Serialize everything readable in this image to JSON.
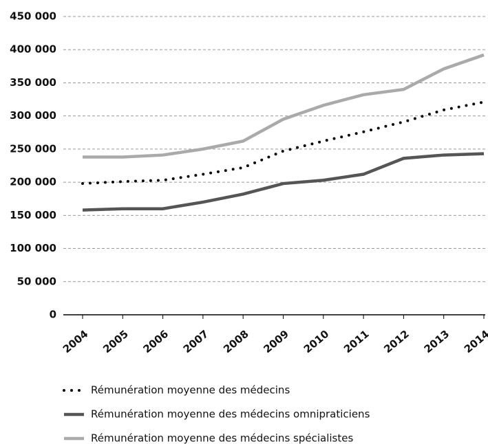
{
  "chart_data": {
    "type": "line",
    "categories": [
      "2004",
      "2005",
      "2006",
      "2007",
      "2008",
      "2009",
      "2010",
      "2011",
      "2012",
      "2013",
      "2014"
    ],
    "series": [
      {
        "name": "Rémunération moyenne des médecins",
        "color": "#000000",
        "style": "dotted",
        "values": [
          198000,
          201000,
          203000,
          212000,
          222000,
          247000,
          262000,
          276000,
          291000,
          309000,
          321000
        ]
      },
      {
        "name": "Rémunération moyenne des médecins omnipraticiens",
        "color": "#555555",
        "style": "solid",
        "values": [
          158000,
          160000,
          160000,
          170000,
          182000,
          198000,
          203000,
          212000,
          236000,
          241000,
          243000
        ]
      },
      {
        "name": "Rémunération moyenne des médecins spécialistes",
        "color": "#aaaaaa",
        "style": "solid",
        "values": [
          238000,
          238000,
          241000,
          250000,
          262000,
          295000,
          316000,
          332000,
          340000,
          371000,
          392000
        ]
      }
    ],
    "ylim": [
      0,
      450000
    ],
    "yticks": [
      0,
      {
        "value": 50000,
        "label": "50 000"
      },
      {
        "value": 100000,
        "label": "100 000"
      },
      {
        "value": 150000,
        "label": "150 000"
      },
      {
        "value": 200000,
        "label": "200 000"
      },
      {
        "value": 250000,
        "label": "250 000"
      },
      {
        "value": 300000,
        "label": "300 000"
      },
      {
        "value": 350000,
        "label": "350 000"
      },
      {
        "value": 400000,
        "label": "400 000"
      },
      {
        "value": 450000,
        "label": "450 000"
      }
    ],
    "grid": true,
    "legend": "bottom"
  }
}
